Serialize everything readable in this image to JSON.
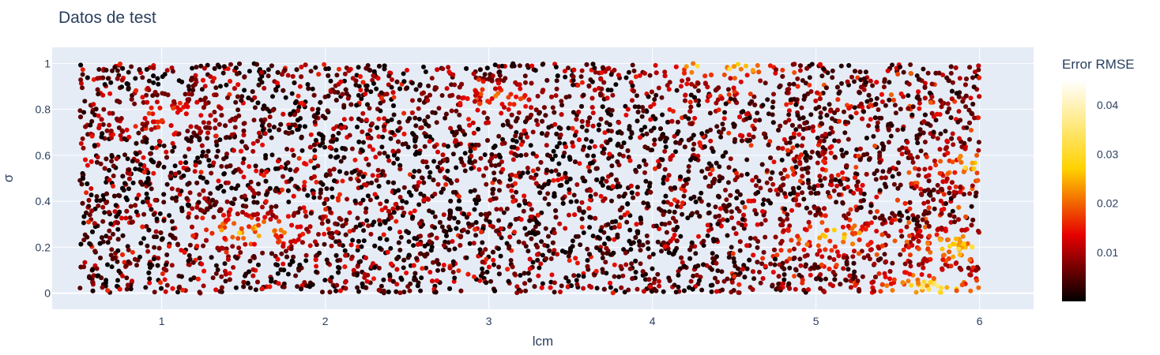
{
  "chart_data": {
    "type": "scatter",
    "title": "Datos de test",
    "xlabel": "lcm",
    "ylabel": "σ",
    "xlim": [
      0.33,
      6.33
    ],
    "ylim": [
      -0.07,
      1.07
    ],
    "x_ticks": [
      1,
      2,
      3,
      4,
      5,
      6
    ],
    "y_ticks": [
      0,
      0.2,
      0.4,
      0.6,
      0.8,
      1
    ],
    "x_tick_labels": [
      "1",
      "2",
      "3",
      "4",
      "5",
      "6"
    ],
    "y_tick_labels": [
      "0",
      "0.2",
      "0.4",
      "0.6",
      "0.8",
      "1"
    ],
    "x_range_points": [
      0.5,
      6.0
    ],
    "y_range_points": [
      0,
      1
    ],
    "point_count": 6000,
    "grid": true,
    "colorbar": {
      "title": "Error RMSE",
      "colorscale": "hot",
      "range": [
        0,
        0.045
      ],
      "ticks": [
        0.01,
        0.02,
        0.03,
        0.04
      ],
      "tick_labels": [
        "0.01",
        "0.02",
        "0.03",
        "0.04"
      ]
    },
    "high_error_regions": [
      {
        "x": 4.4,
        "y": 1.0,
        "value": 0.035
      },
      {
        "x": 5.7,
        "y": 0.02,
        "value": 0.035
      },
      {
        "x": 5.9,
        "y": 0.2,
        "value": 0.03
      },
      {
        "x": 1.55,
        "y": 0.27,
        "value": 0.028
      },
      {
        "x": 5.1,
        "y": 0.25,
        "value": 0.028
      },
      {
        "x": 6.0,
        "y": 0.55,
        "value": 0.03
      },
      {
        "x": 3.05,
        "y": 0.85,
        "value": 0.02
      },
      {
        "x": 1.05,
        "y": 0.78,
        "value": 0.018
      }
    ],
    "colors": {
      "plot_bg": "#e5ecf6",
      "grid": "#ffffff",
      "text": "#2a3f5f"
    }
  }
}
